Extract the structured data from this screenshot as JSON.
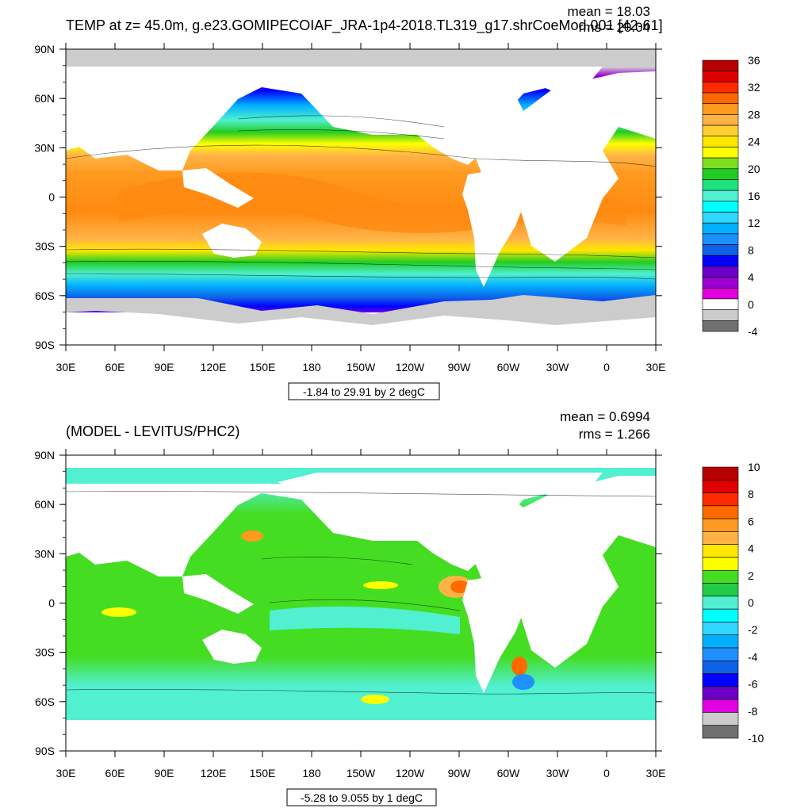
{
  "top": {
    "title": "TEMP at z=  45.0m, g.e23.GOMIPECOIAF_JRA-1p4-2018.TL319_g17.shrCoeMod.001 [42-61]",
    "mean_text": "mean = 18.03",
    "rms_text": "rms = 20.04",
    "range_text": "-1.84 to 29.91 by 2 degC",
    "colorbar_labels": [
      "36",
      "32",
      "28",
      "24",
      "20",
      "16",
      "12",
      "8",
      "4",
      "0",
      "-4"
    ],
    "colorbar_colors": [
      "#b80000",
      "#e00000",
      "#ff2a00",
      "#ff6a00",
      "#ff9a20",
      "#ffb347",
      "#ffd030",
      "#ffe700",
      "#ffff00",
      "#7de020",
      "#22cc22",
      "#20e080",
      "#50f0d0",
      "#00ffff",
      "#30d8ff",
      "#00b0ff",
      "#1e90ff",
      "#1060e8",
      "#0000ff",
      "#6a00c8",
      "#9b00d0",
      "#e000e0",
      "#ffffff",
      "#cccccc",
      "#707070"
    ]
  },
  "bottom": {
    "title": "(MODEL - LEVITUS/PHC2)",
    "mean_text": "mean = 0.6994",
    "rms_text": "rms = 1.266",
    "range_text": "-5.28 to 9.055 by 1 degC",
    "colorbar_labels": [
      "10",
      "8",
      "6",
      "4",
      "2",
      "0",
      "-2",
      "-4",
      "-6",
      "-8",
      "-10"
    ],
    "colorbar_colors": [
      "#b80000",
      "#e00000",
      "#ff2a00",
      "#ff6a00",
      "#ff9a20",
      "#ffb347",
      "#ffe700",
      "#ffff00",
      "#44dd22",
      "#22cc44",
      "#50f0d0",
      "#00ffff",
      "#30d8ff",
      "#00b0ff",
      "#1e90ff",
      "#1060e8",
      "#0000ff",
      "#6a00c8",
      "#e000e0",
      "#cccccc",
      "#707070"
    ]
  },
  "axes": {
    "lat_labels": [
      "90N",
      "60N",
      "30N",
      "0",
      "30S",
      "60S",
      "90S"
    ],
    "lon_labels": [
      "30E",
      "60E",
      "90E",
      "120E",
      "150E",
      "180",
      "150W",
      "120W",
      "90W",
      "60W",
      "30W",
      "0",
      "30E"
    ]
  },
  "colors": {
    "land": "#ffffff",
    "ice": "#cccccc",
    "frame": "#000000"
  }
}
